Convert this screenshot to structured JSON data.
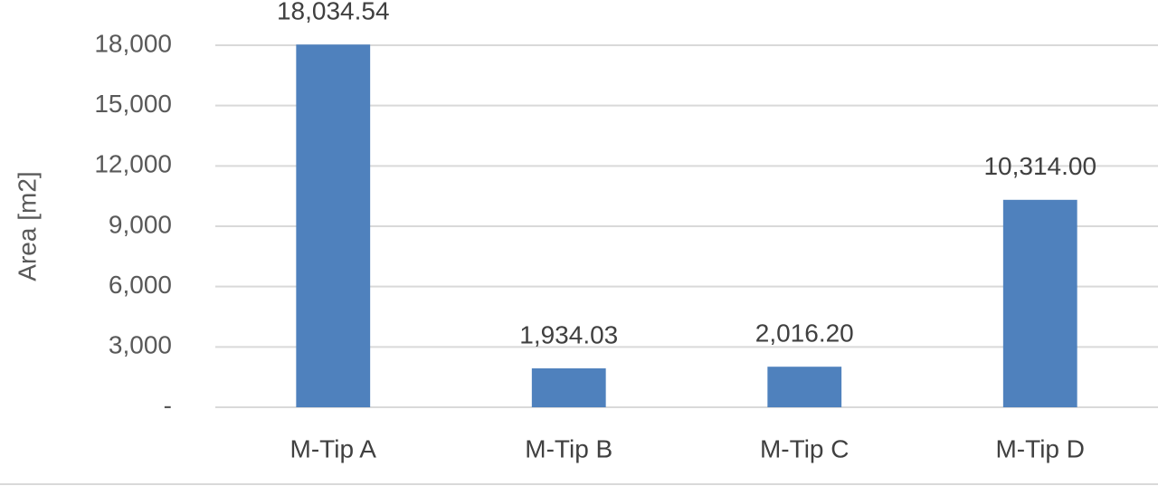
{
  "chart_data": {
    "type": "bar",
    "y_label": "Area [m2]",
    "categories": [
      "M-Tip A",
      "M-Tip B",
      "M-Tip C",
      "M-Tip D"
    ],
    "values": [
      18034.54,
      1934.03,
      2016.2,
      10314.0
    ],
    "value_labels": [
      "18,034.54",
      "1,934.03",
      "2,016.20",
      "10,314.00"
    ],
    "color": "#4f81bd",
    "ylim": [
      0,
      18000
    ],
    "yticks": [
      {
        "value": 0,
        "label": "-"
      },
      {
        "value": 3000,
        "label": "3,000"
      },
      {
        "value": 6000,
        "label": "6,000"
      },
      {
        "value": 9000,
        "label": "9,000"
      },
      {
        "value": 12000,
        "label": "12,000"
      },
      {
        "value": 15000,
        "label": "15,000"
      },
      {
        "value": 18000,
        "label": "18,000"
      }
    ],
    "grid": true
  }
}
